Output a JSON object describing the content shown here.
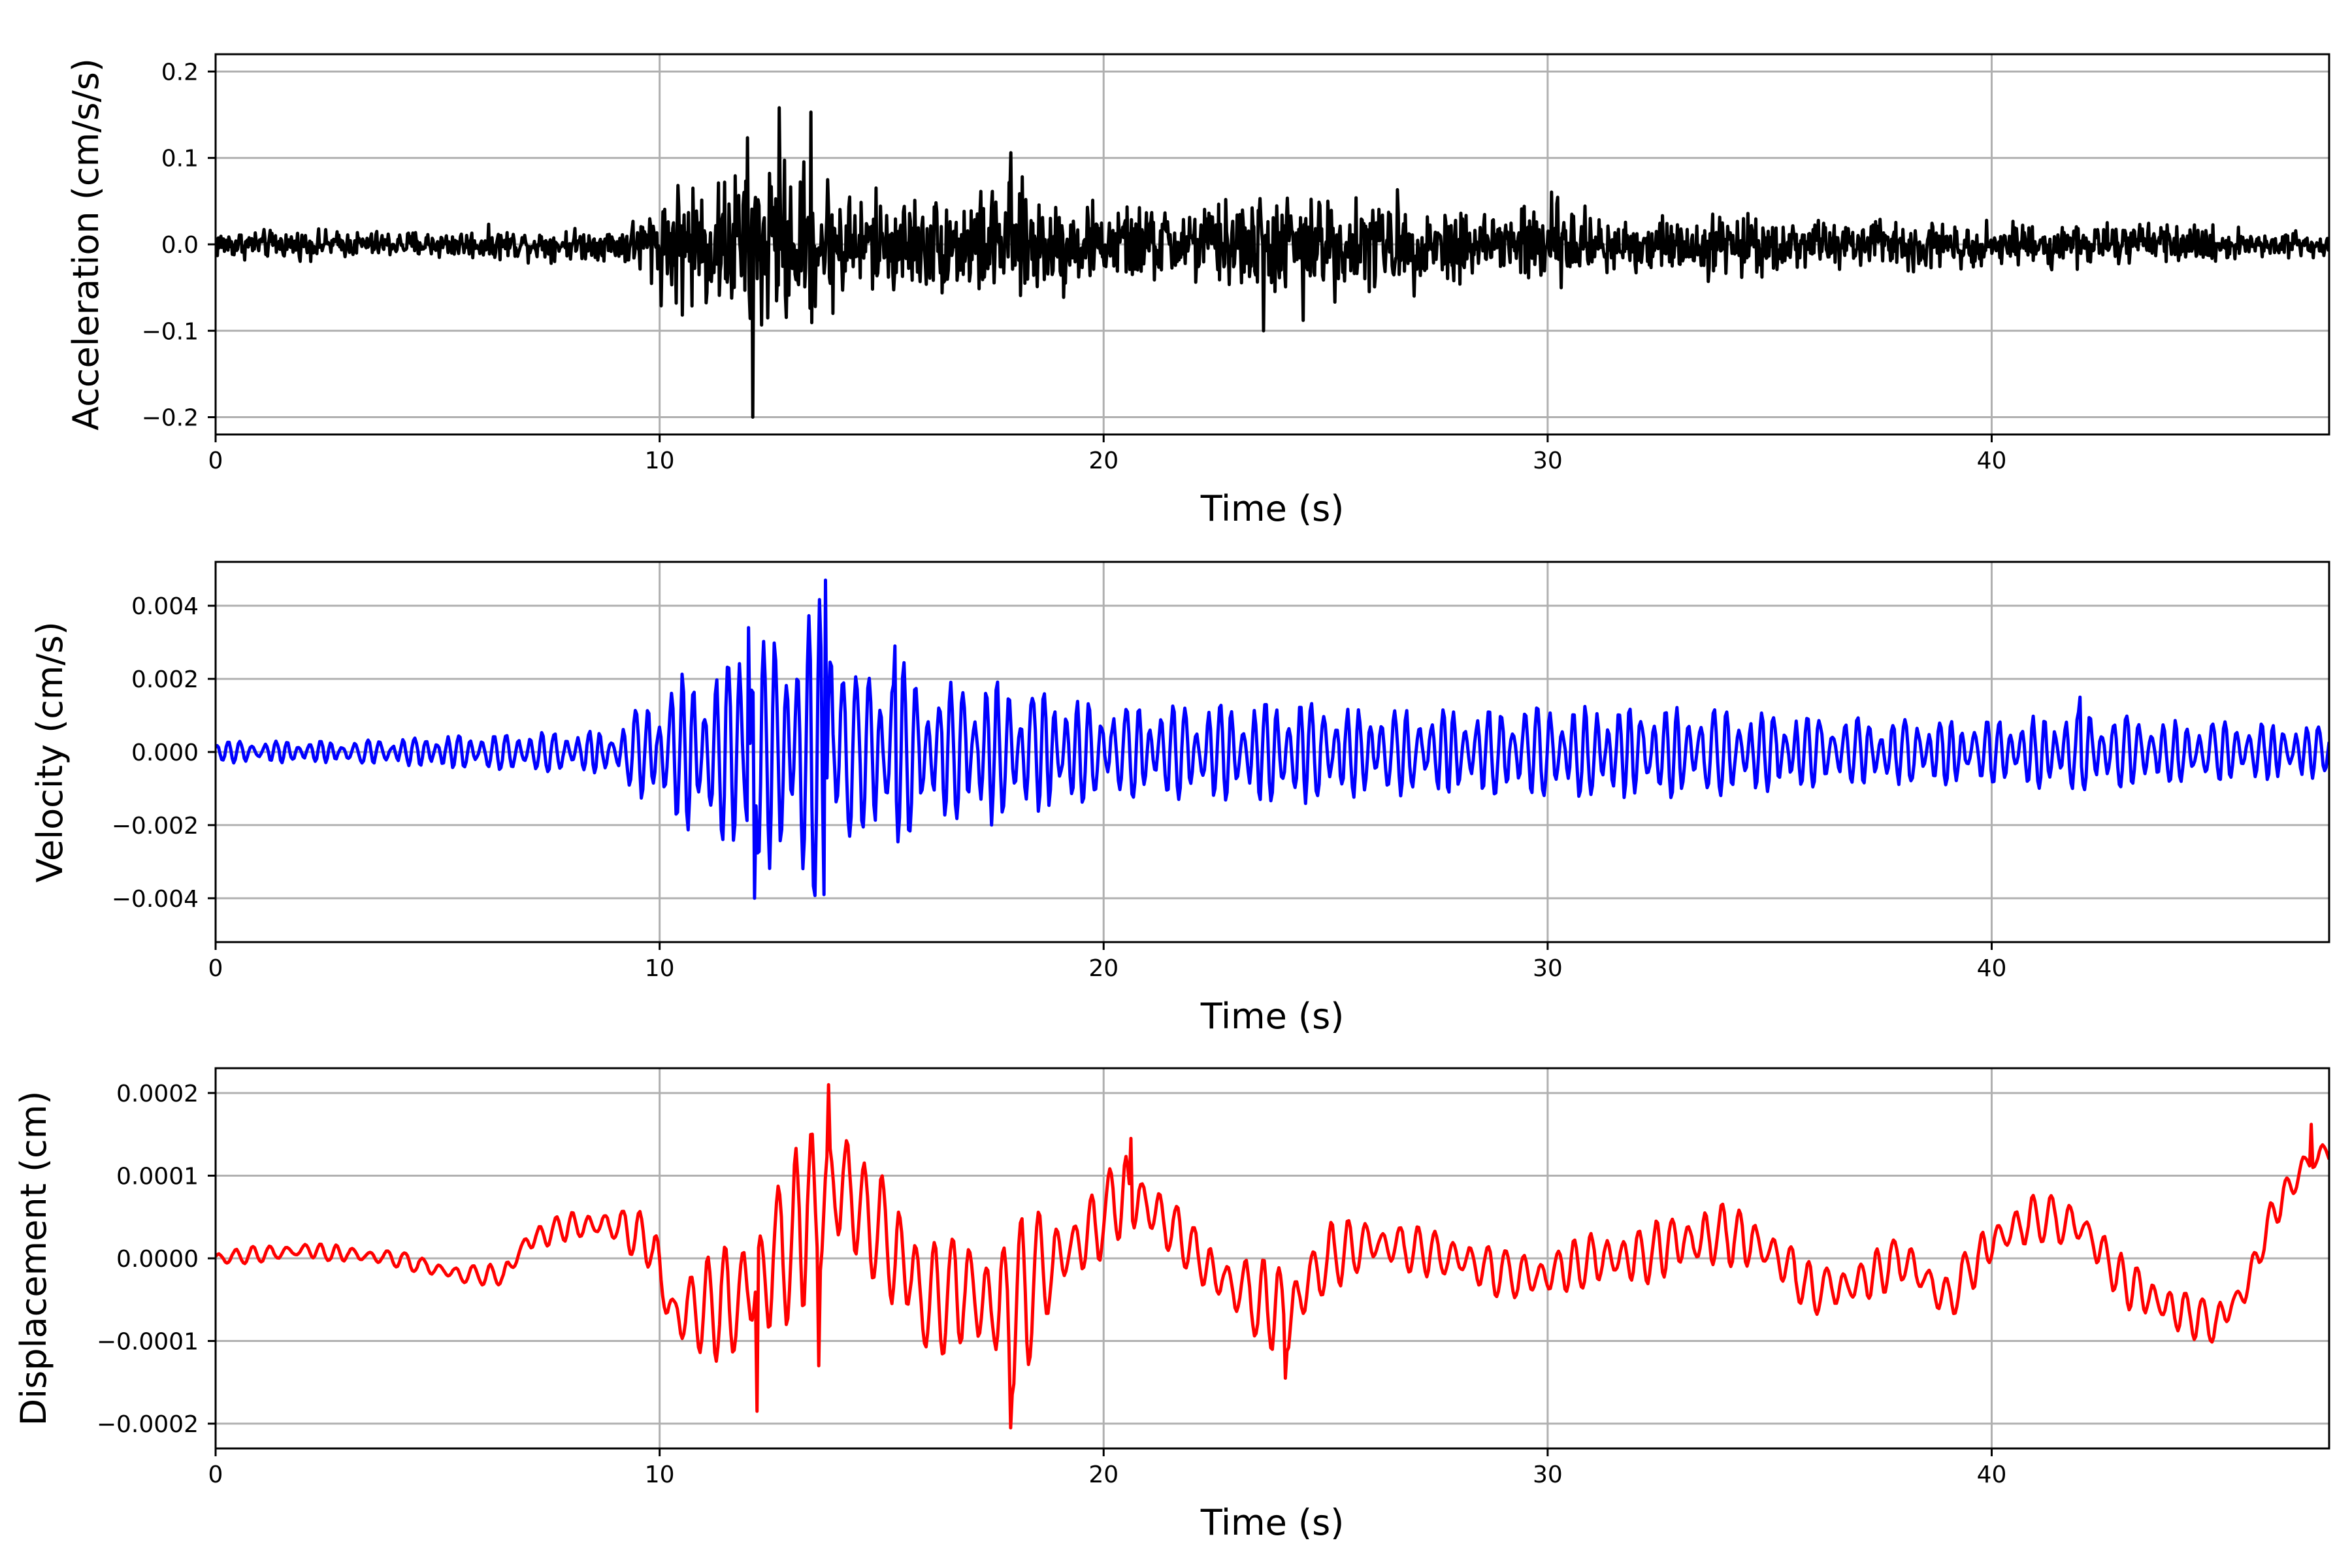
{
  "chart_data": [
    {
      "type": "line",
      "xlabel": "Time (s)",
      "ylabel": "Acceleration (cm/s/s)",
      "xlim": [
        0,
        47.6
      ],
      "ylim": [
        -0.22,
        0.22
      ],
      "xticks": [
        0,
        10,
        20,
        30,
        40
      ],
      "xtick_labels": [
        "0",
        "10",
        "20",
        "30",
        "40"
      ],
      "yticks": [
        -0.2,
        -0.1,
        0.0,
        0.1,
        0.2
      ],
      "ytick_labels": [
        "−0.2",
        "−0.1",
        "0.0",
        "0.1",
        "0.2"
      ],
      "grid": true,
      "series": [
        {
          "color": "#000000",
          "envelope": {
            "x": [
              0,
              3,
              6,
              9,
              9.5,
              10.5,
              11.5,
              12.1,
              12.7,
              13.4,
              14.5,
              16,
              18,
              20,
              22,
              24,
              26,
              28,
              30,
              32,
              34,
              36,
              38,
              40,
              42,
              44,
              46,
              47.6
            ],
            "amplitude": [
              0.028,
              0.025,
              0.028,
              0.03,
              0.055,
              0.13,
              0.13,
              0.2,
              0.155,
              0.15,
              0.1,
              0.09,
              0.11,
              0.07,
              0.075,
              0.1,
              0.09,
              0.07,
              0.085,
              0.05,
              0.06,
              0.045,
              0.05,
              0.04,
              0.04,
              0.035,
              0.03,
              0.025
            ]
          },
          "extremes": [
            {
              "x": 12.1,
              "y": -0.2
            },
            {
              "x": 12.7,
              "y": 0.158
            },
            {
              "x": 13.4,
              "y": 0.153
            },
            {
              "x": 17.9,
              "y": 0.106
            },
            {
              "x": 23.6,
              "y": -0.1
            },
            {
              "x": 24.5,
              "y": -0.088
            }
          ]
        }
      ]
    },
    {
      "type": "line",
      "xlabel": "Time (s)",
      "ylabel": "Velocity (cm/s)",
      "xlim": [
        0,
        47.6
      ],
      "ylim": [
        -0.0052,
        0.0052
      ],
      "xticks": [
        0,
        10,
        20,
        30,
        40
      ],
      "xtick_labels": [
        "0",
        "10",
        "20",
        "30",
        "40"
      ],
      "yticks": [
        -0.004,
        -0.002,
        0.0,
        0.002,
        0.004
      ],
      "ytick_labels": [
        "−0.004",
        "−0.002",
        "0.000",
        "0.002",
        "0.004"
      ],
      "grid": true,
      "series": [
        {
          "color": "#0000ff",
          "envelope": {
            "x": [
              0,
              3,
              6,
              9,
              9.5,
              10.5,
              11.5,
              12.1,
              12.7,
              13.7,
              14.5,
              15.3,
              16,
              17.5,
              18.5,
              20,
              22,
              24,
              26,
              28,
              30,
              32,
              34,
              36,
              38,
              40,
              42,
              44,
              46,
              47.6
            ],
            "amplitude": [
              0.0003,
              0.0003,
              0.0005,
              0.0006,
              0.0012,
              0.0022,
              0.0025,
              0.004,
              0.0028,
              0.0047,
              0.002,
              0.0029,
              0.0018,
              0.0021,
              0.0017,
              0.0013,
              0.0013,
              0.0015,
              0.0012,
              0.0012,
              0.0013,
              0.0013,
              0.0012,
              0.001,
              0.0009,
              0.0009,
              0.0011,
              0.0009,
              0.0008,
              0.0007
            ]
          },
          "extremes": [
            {
              "x": 12.15,
              "y": -0.004
            },
            {
              "x": 13.75,
              "y": 0.0047
            },
            {
              "x": 13.7,
              "y": -0.0039
            },
            {
              "x": 12.0,
              "y": 0.0034
            },
            {
              "x": 15.3,
              "y": 0.0029
            },
            {
              "x": 42.0,
              "y": 0.0015
            }
          ]
        }
      ]
    },
    {
      "type": "line",
      "xlabel": "Time (s)",
      "ylabel": "Displacement (cm)",
      "xlim": [
        0,
        47.6
      ],
      "ylim": [
        -0.00023,
        0.00023
      ],
      "xticks": [
        0,
        10,
        20,
        30,
        40
      ],
      "xtick_labels": [
        "0",
        "10",
        "20",
        "30",
        "40"
      ],
      "yticks": [
        -0.0002,
        -0.0001,
        0.0,
        0.0001,
        0.0002
      ],
      "ytick_labels": [
        "−0.0002",
        "−0.0001",
        "0.0000",
        "0.0001",
        "0.0002"
      ],
      "grid": true,
      "series": [
        {
          "color": "#ff0000",
          "trend": {
            "x": [
              0,
              2,
              4,
              5.5,
              6.5,
              7,
              8,
              9,
              9.8,
              10.3,
              11,
              11.8,
              12.4,
              13.2,
              14,
              15,
              16,
              17,
              17.9,
              18.5,
              19.5,
              20.5,
              21.5,
              22.5,
              23.5,
              24.2,
              25,
              26,
              27,
              28,
              29,
              30,
              31,
              32,
              33,
              34,
              35,
              36,
              37,
              38,
              39,
              40,
              41,
              42,
              43,
              44,
              45,
              45.7,
              46.3,
              47,
              47.6
            ],
            "y": [
              0,
              1e-05,
              0,
              -2e-05,
              -2e-05,
              2e-05,
              4e-05,
              4e-05,
              2e-05,
              -7e-05,
              -6e-05,
              -5e-05,
              -2e-05,
              4e-05,
              9e-05,
              3e-05,
              -5e-05,
              -4e-05,
              -7e-05,
              -2e-05,
              2e-05,
              8e-05,
              4e-05,
              -2e-05,
              -5e-05,
              -7e-05,
              0,
              2e-05,
              1e-05,
              0,
              -2e-05,
              -2e-05,
              0,
              0,
              2e-05,
              3e-05,
              1e-05,
              -4e-05,
              -3e-05,
              0,
              -5e-05,
              2e-05,
              5e-05,
              4e-05,
              -3e-05,
              -6e-05,
              -8e-05,
              -4e-05,
              5e-05,
              0.00011,
              0.00013
            ]
          },
          "ripple": {
            "x": [
              0,
              5,
              7,
              9,
              10,
              11,
              12,
              13,
              13.7,
              14.5,
              15.5,
              17,
              17.9,
              19,
              20.7,
              22,
              24.1,
              26,
              30,
              33.5,
              36,
              40,
              42,
              44,
              46,
              47.6
            ],
            "amplitude": [
              1e-05,
              1e-05,
              1.5e-05,
              2e-05,
              4e-05,
              6e-05,
              9e-05,
              0.0001,
              0.00014,
              6e-05,
              9e-05,
              6e-05,
              0.00012,
              5e-05,
              5e-05,
              3e-05,
              6e-05,
              3e-05,
              3e-05,
              4e-05,
              3e-05,
              3e-05,
              3e-05,
              3e-05,
              2e-05,
              2e-05
            ]
          },
          "extremes": [
            {
              "x": 12.2,
              "y": -0.000185
            },
            {
              "x": 13.6,
              "y": 0.00021
            },
            {
              "x": 13.8,
              "y": 0.00021
            },
            {
              "x": 13.6,
              "y": -0.00013
            },
            {
              "x": 17.9,
              "y": -0.000205
            },
            {
              "x": 20.6,
              "y": 0.000145
            },
            {
              "x": 24.1,
              "y": -0.000145
            },
            {
              "x": 47.2,
              "y": 0.000162
            }
          ]
        }
      ]
    }
  ]
}
